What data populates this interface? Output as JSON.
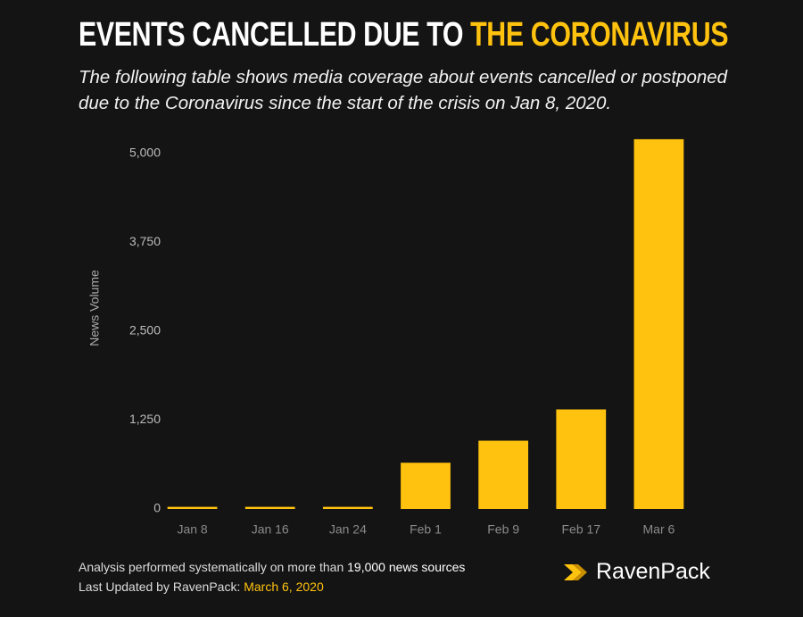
{
  "title": "EVENTS CANCELLED DUE TO",
  "title_highlight": "THE CORONAVIRUS",
  "subtitle": "The following table shows media coverage about events cancelled or postponed due to the Coronavirus since the start of the crisis on Jan 8, 2020.",
  "footer": {
    "line1": "Analysis performed systematically on more than",
    "line1_highlight": "19,000 news sources",
    "line2": "Last Updated by RavenPack:",
    "line2_highlight": "March 6, 2020"
  },
  "logo": "RavenPack",
  "chart_data": {
    "type": "bar",
    "y_label": "News Volume",
    "categories": [
      "Jan 8",
      "Jan 16",
      "Jan 24",
      "Feb 1",
      "Feb 9",
      "Feb 17",
      "Mar 6"
    ],
    "values": [
      30,
      30,
      30,
      650,
      960,
      1400,
      5200
    ],
    "color": "#ffc20e",
    "ylim": [
      0,
      5400
    ],
    "yticks": [
      0,
      {
        "value": 1250,
        "label": "1,250"
      },
      {
        "value": 2500,
        "label": "2,500"
      },
      {
        "value": 3750,
        "label": "3,750"
      },
      {
        "value": 5000,
        "label": "5,000"
      }
    ],
    "grid": false
  }
}
